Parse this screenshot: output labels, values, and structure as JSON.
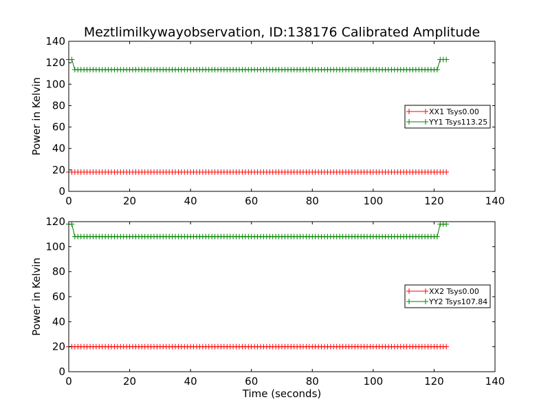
{
  "figure": {
    "title": "Meztlimilkywayobservation, ID:138176 Calibrated Amplitude"
  },
  "colors": {
    "series_a": "#ff0000",
    "series_b": "#008000",
    "axes": "#000000",
    "background": "#ffffff"
  },
  "chart_data": [
    {
      "type": "line",
      "title": "Meztlimilkywayobservation, ID:138176 Calibrated Amplitude",
      "xlabel": "",
      "ylabel": "Power in Kelvin",
      "xlim": [
        0,
        140
      ],
      "ylim": [
        0,
        140
      ],
      "xticks": [
        0,
        20,
        40,
        60,
        80,
        100,
        120,
        140
      ],
      "yticks": [
        0,
        20,
        40,
        60,
        80,
        100,
        120,
        140
      ],
      "grid": false,
      "legend_position": "center-right",
      "marker": "+",
      "x_start": 0,
      "x_end": 124,
      "x_step": 1,
      "series": [
        {
          "name": "XX1 Tsys0.00",
          "color": "#ff0000",
          "segments": [
            {
              "from": 0,
              "to": 124,
              "value": 18
            }
          ]
        },
        {
          "name": "YY1 Tsys113.25",
          "color": "#008000",
          "segments": [
            {
              "from": 0,
              "to": 1,
              "value": 123
            },
            {
              "from": 2,
              "to": 121,
              "value": 113.5
            },
            {
              "from": 122,
              "to": 124,
              "value": 123
            }
          ]
        }
      ]
    },
    {
      "type": "line",
      "title": "",
      "xlabel": "Time (seconds)",
      "ylabel": "Power in Kelvin",
      "xlim": [
        0,
        140
      ],
      "ylim": [
        0,
        120
      ],
      "xticks": [
        0,
        20,
        40,
        60,
        80,
        100,
        120,
        140
      ],
      "yticks": [
        0,
        20,
        40,
        60,
        80,
        100,
        120
      ],
      "grid": false,
      "legend_position": "center-right",
      "marker": "+",
      "x_start": 0,
      "x_end": 124,
      "x_step": 1,
      "series": [
        {
          "name": "XX2 Tsys0.00",
          "color": "#ff0000",
          "segments": [
            {
              "from": 0,
              "to": 124,
              "value": 20
            }
          ]
        },
        {
          "name": "YY2 Tsys107.84",
          "color": "#008000",
          "segments": [
            {
              "from": 0,
              "to": 1,
              "value": 118
            },
            {
              "from": 2,
              "to": 121,
              "value": 108
            },
            {
              "from": 122,
              "to": 124,
              "value": 118
            }
          ]
        }
      ]
    }
  ]
}
